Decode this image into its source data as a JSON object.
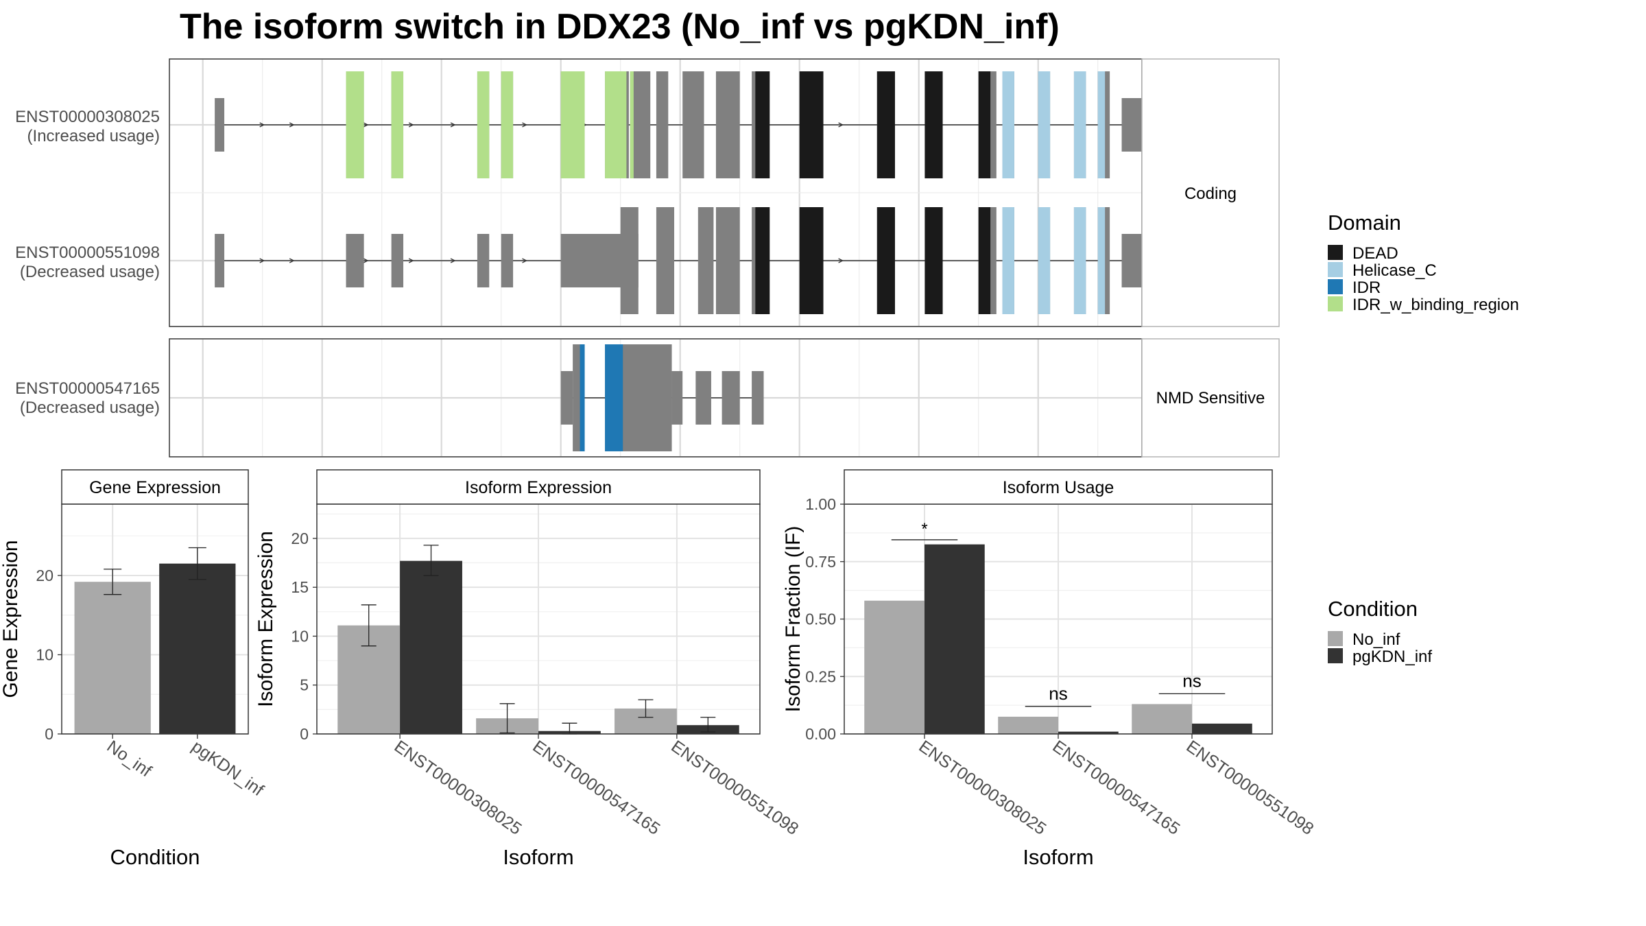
{
  "title": "The isoform switch in DDX23 (No_inf vs pgKDN_inf)",
  "colors": {
    "exon": "#808080",
    "DEAD": "#1a1a1a",
    "Helicase_C": "#a6cee3",
    "IDR": "#1f78b4",
    "IDR_w_binding_region": "#b2df8a",
    "No_inf": "#a9a9a9",
    "pgKDN_inf": "#333333"
  },
  "structure": {
    "panels": [
      {
        "label": "Coding",
        "isoforms": [
          {
            "id": "ENST00000308025",
            "note": "(Increased usage)",
            "exons": [
              [
                1,
                1.8,
                0.5
              ],
              [
                12,
                13.5,
                1
              ],
              [
                15.8,
                16.8,
                1
              ],
              [
                23,
                24,
                1
              ],
              [
                25,
                26,
                1
              ],
              [
                30,
                32,
                1
              ],
              [
                33.7,
                35.7,
                1
              ],
              [
                35.8,
                37.5,
                1
              ],
              [
                38,
                39,
                1
              ],
              [
                40.2,
                42,
                1
              ],
              [
                43,
                45,
                1
              ],
              [
                46,
                47.5,
                1
              ],
              [
                50,
                52,
                1
              ],
              [
                56.5,
                58,
                1
              ],
              [
                60.5,
                62,
                1
              ],
              [
                65,
                66.5,
                1
              ],
              [
                67,
                68,
                1
              ],
              [
                70,
                71,
                1
              ],
              [
                73,
                74,
                1
              ],
              [
                75,
                76,
                1
              ],
              [
                77,
                80,
                0.5
              ]
            ],
            "domains": [
              [
                12,
                13.5,
                "IDR_w_binding_region"
              ],
              [
                15.8,
                16.8,
                "IDR_w_binding_region"
              ],
              [
                23,
                24,
                "IDR_w_binding_region"
              ],
              [
                25,
                26,
                "IDR_w_binding_region"
              ],
              [
                30,
                32,
                "IDR_w_binding_region"
              ],
              [
                33.7,
                35.5,
                "IDR_w_binding_region"
              ],
              [
                35.8,
                36.1,
                "IDR_w_binding_region"
              ],
              [
                46.3,
                47.5,
                "DEAD"
              ],
              [
                50,
                52,
                "DEAD"
              ],
              [
                56.5,
                58,
                "DEAD"
              ],
              [
                60.5,
                62,
                "DEAD"
              ],
              [
                65,
                66,
                "DEAD"
              ],
              [
                67,
                68,
                "Helicase_C"
              ],
              [
                70,
                71,
                "Helicase_C"
              ],
              [
                73,
                74,
                "Helicase_C"
              ],
              [
                75,
                75.6,
                "Helicase_C"
              ]
            ]
          },
          {
            "id": "ENST00000551098",
            "note": "(Decreased usage)",
            "exons": [
              [
                1,
                1.8,
                0.5
              ],
              [
                12,
                13.5,
                0.5
              ],
              [
                15.8,
                16.8,
                0.5
              ],
              [
                23,
                24,
                0.5
              ],
              [
                25,
                26,
                0.5
              ],
              [
                30,
                36.5,
                0.5
              ],
              [
                35,
                36.5,
                1
              ],
              [
                38,
                39.5,
                1
              ],
              [
                41.5,
                42.8,
                1
              ],
              [
                43,
                45,
                1
              ],
              [
                46,
                47.5,
                1
              ],
              [
                50,
                52,
                1
              ],
              [
                56.5,
                58,
                1
              ],
              [
                60.5,
                62,
                1
              ],
              [
                65,
                66.5,
                1
              ],
              [
                67,
                68,
                1
              ],
              [
                70,
                71,
                1
              ],
              [
                73,
                74,
                1
              ],
              [
                75,
                76,
                1
              ],
              [
                77,
                79.5,
                0.5
              ]
            ],
            "domains": [
              [
                46.3,
                47.5,
                "DEAD"
              ],
              [
                50,
                52,
                "DEAD"
              ],
              [
                56.5,
                58,
                "DEAD"
              ],
              [
                60.5,
                62,
                "DEAD"
              ],
              [
                65,
                66,
                "DEAD"
              ],
              [
                67,
                68,
                "Helicase_C"
              ],
              [
                70,
                71,
                "Helicase_C"
              ],
              [
                73,
                74,
                "Helicase_C"
              ],
              [
                75,
                75.6,
                "Helicase_C"
              ]
            ]
          }
        ]
      },
      {
        "label": "NMD Sensitive",
        "isoforms": [
          {
            "id": "ENST00000547165",
            "note": "(Decreased usage)",
            "exons": [
              [
                30,
                31,
                0.5
              ],
              [
                31,
                32,
                1
              ],
              [
                33.7,
                39.3,
                1
              ],
              [
                39.3,
                40.2,
                0.5
              ],
              [
                41.3,
                42.6,
                0.5
              ],
              [
                43.5,
                45,
                0.5
              ],
              [
                46,
                47,
                0.5
              ]
            ],
            "domains": [
              [
                31.6,
                32,
                "IDR"
              ],
              [
                33.7,
                35.2,
                "IDR"
              ]
            ]
          }
        ]
      }
    ]
  },
  "legend_domain": {
    "title": "Domain",
    "items": [
      "DEAD",
      "Helicase_C",
      "IDR",
      "IDR_w_binding_region"
    ]
  },
  "legend_condition": {
    "title": "Condition",
    "items": [
      "No_inf",
      "pgKDN_inf"
    ]
  },
  "chart_data": [
    {
      "type": "bar",
      "title": "Gene Expression",
      "xlabel": "Condition",
      "ylabel": "Gene Expression",
      "categories": [
        "No_inf",
        "pgKDN_inf"
      ],
      "values": [
        19.2,
        21.5
      ],
      "errors": [
        [
          17.6,
          20.8
        ],
        [
          19.5,
          23.5
        ]
      ],
      "ylim": [
        0,
        29
      ],
      "yticks": [
        0,
        10,
        20
      ]
    },
    {
      "type": "bar",
      "title": "Isoform Expression",
      "xlabel": "Isoform",
      "ylabel": "Isoform Expression",
      "categories": [
        "ENST00000308025",
        "ENST00000547165",
        "ENST00000551098"
      ],
      "series": [
        {
          "name": "No_inf",
          "values": [
            11.1,
            1.6,
            2.6
          ],
          "errors": [
            [
              9.0,
              13.2
            ],
            [
              0.1,
              3.1
            ],
            [
              1.7,
              3.5
            ]
          ]
        },
        {
          "name": "pgKDN_inf",
          "values": [
            17.7,
            0.3,
            0.9
          ],
          "errors": [
            [
              16.2,
              19.3
            ],
            [
              0.0,
              1.1
            ],
            [
              0.2,
              1.7
            ]
          ]
        }
      ],
      "ylim": [
        0,
        23.5
      ],
      "yticks": [
        0,
        5,
        10,
        15,
        20
      ]
    },
    {
      "type": "bar",
      "title": "Isoform Usage",
      "xlabel": "Isoform",
      "ylabel": "Isoform Fraction (IF)",
      "categories": [
        "ENST00000308025",
        "ENST00000547165",
        "ENST00000551098"
      ],
      "series": [
        {
          "name": "No_inf",
          "values": [
            0.58,
            0.075,
            0.13
          ]
        },
        {
          "name": "pgKDN_inf",
          "values": [
            0.825,
            0.01,
            0.045
          ]
        }
      ],
      "significance": [
        "*",
        "ns",
        "ns"
      ],
      "ylim": [
        0,
        1.0
      ],
      "yticks": [
        "0.00",
        "0.25",
        "0.50",
        "0.75",
        "1.00"
      ]
    }
  ]
}
